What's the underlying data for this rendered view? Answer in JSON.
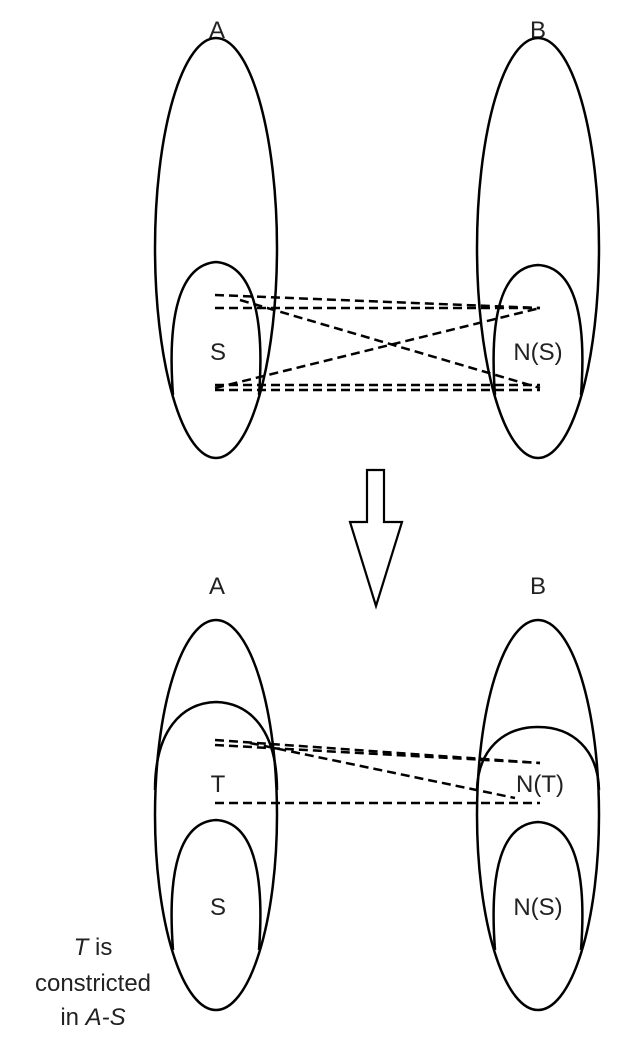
{
  "top_panel": {
    "label_A": "A",
    "label_B": "B",
    "label_S": "S",
    "label_NS": "N(S)"
  },
  "bottom_panel": {
    "label_A": "A",
    "label_B": "B",
    "label_T": "T",
    "label_NT": "N(T)",
    "label_S": "S",
    "label_NS": "N(S)"
  },
  "caption": {
    "line1_italic": "T",
    "line1_rest": " is",
    "line2": "constricted",
    "line3_prefix": "in ",
    "line3_italic": "A-S"
  },
  "colors": {
    "stroke": "#000000",
    "text": "#222222",
    "background": "#ffffff"
  }
}
